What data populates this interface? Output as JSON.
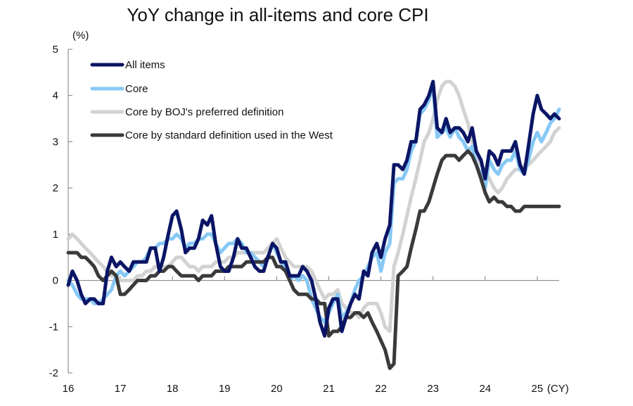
{
  "chart_data": {
    "type": "line",
    "title": "YoY change in all-items and core CPI",
    "ylabel": "(%)",
    "xlabel": "",
    "x_unit": "(CY)",
    "ylim": [
      -2,
      5
    ],
    "xlim": [
      2016.0,
      2025.42
    ],
    "y_ticks": [
      -2,
      -1,
      0,
      1,
      2,
      3,
      4,
      5
    ],
    "x_ticks": [
      {
        "value": 2016,
        "label": "16"
      },
      {
        "value": 2017,
        "label": "17"
      },
      {
        "value": 2018,
        "label": "18"
      },
      {
        "value": 2019,
        "label": "19"
      },
      {
        "value": 2020,
        "label": "20"
      },
      {
        "value": 2021,
        "label": "21"
      },
      {
        "value": 2022,
        "label": "22"
      },
      {
        "value": 2023,
        "label": "23"
      },
      {
        "value": 2024,
        "label": "24"
      },
      {
        "value": 2025,
        "label": "25"
      }
    ],
    "grid": false,
    "legend_position": "top-left",
    "series": [
      {
        "name": "All items",
        "color": "#0b1566",
        "width": 5,
        "x": [
          2016.0,
          2016.08,
          2016.17,
          2016.25,
          2016.33,
          2016.42,
          2016.5,
          2016.58,
          2016.67,
          2016.75,
          2016.83,
          2016.92,
          2017.0,
          2017.08,
          2017.17,
          2017.25,
          2017.33,
          2017.42,
          2017.5,
          2017.58,
          2017.67,
          2017.75,
          2017.83,
          2017.92,
          2018.0,
          2018.08,
          2018.17,
          2018.25,
          2018.33,
          2018.42,
          2018.5,
          2018.58,
          2018.67,
          2018.75,
          2018.83,
          2018.92,
          2019.0,
          2019.08,
          2019.17,
          2019.25,
          2019.33,
          2019.42,
          2019.5,
          2019.58,
          2019.67,
          2019.75,
          2019.83,
          2019.92,
          2020.0,
          2020.08,
          2020.17,
          2020.25,
          2020.33,
          2020.42,
          2020.5,
          2020.58,
          2020.67,
          2020.75,
          2020.83,
          2020.92,
          2021.0,
          2021.08,
          2021.17,
          2021.25,
          2021.33,
          2021.42,
          2021.5,
          2021.58,
          2021.67,
          2021.75,
          2021.83,
          2021.92,
          2022.0,
          2022.08,
          2022.17,
          2022.25,
          2022.33,
          2022.42,
          2022.5,
          2022.58,
          2022.67,
          2022.75,
          2022.83,
          2022.92,
          2023.0,
          2023.08,
          2023.17,
          2023.25,
          2023.33,
          2023.42,
          2023.5,
          2023.58,
          2023.67,
          2023.75,
          2023.83,
          2023.92,
          2024.0,
          2024.08,
          2024.17,
          2024.25,
          2024.33,
          2024.42,
          2024.5,
          2024.58,
          2024.67,
          2024.75,
          2024.83,
          2024.92,
          2025.0,
          2025.08,
          2025.17,
          2025.25,
          2025.33,
          2025.42
        ],
        "values": [
          -0.1,
          0.2,
          0.0,
          -0.3,
          -0.5,
          -0.4,
          -0.4,
          -0.5,
          -0.5,
          0.2,
          0.5,
          0.3,
          0.4,
          0.3,
          0.2,
          0.4,
          0.4,
          0.4,
          0.4,
          0.7,
          0.7,
          0.2,
          0.5,
          1.0,
          1.4,
          1.5,
          1.1,
          0.6,
          0.7,
          0.7,
          0.9,
          1.3,
          1.2,
          1.4,
          0.8,
          0.3,
          0.2,
          0.2,
          0.5,
          0.9,
          0.7,
          0.7,
          0.5,
          0.3,
          0.2,
          0.2,
          0.5,
          0.8,
          0.7,
          0.4,
          0.4,
          0.1,
          0.1,
          0.1,
          0.3,
          0.2,
          0.0,
          -0.4,
          -0.9,
          -1.2,
          -0.6,
          -0.4,
          -0.4,
          -1.1,
          -0.8,
          -0.5,
          -0.3,
          -0.4,
          0.2,
          0.1,
          0.6,
          0.8,
          0.5,
          0.9,
          1.2,
          2.5,
          2.5,
          2.4,
          2.6,
          3.0,
          3.0,
          3.7,
          3.8,
          4.0,
          4.3,
          3.3,
          3.2,
          3.5,
          3.2,
          3.3,
          3.3,
          3.2,
          3.0,
          3.3,
          2.8,
          2.6,
          2.2,
          2.8,
          2.7,
          2.5,
          2.8,
          2.8,
          2.8,
          3.0,
          2.5,
          2.3,
          2.9,
          3.6,
          4.0,
          3.7,
          3.6,
          3.5,
          3.6,
          3.5
        ]
      },
      {
        "name": "Core",
        "color": "#87c8f5",
        "width": 5,
        "x": [
          2016.0,
          2016.08,
          2016.17,
          2016.25,
          2016.33,
          2016.42,
          2016.5,
          2016.58,
          2016.67,
          2016.75,
          2016.83,
          2016.92,
          2017.0,
          2017.08,
          2017.17,
          2017.25,
          2017.33,
          2017.42,
          2017.5,
          2017.58,
          2017.67,
          2017.75,
          2017.83,
          2017.92,
          2018.0,
          2018.08,
          2018.17,
          2018.25,
          2018.33,
          2018.42,
          2018.5,
          2018.58,
          2018.67,
          2018.75,
          2018.83,
          2018.92,
          2019.0,
          2019.08,
          2019.17,
          2019.25,
          2019.33,
          2019.42,
          2019.5,
          2019.58,
          2019.67,
          2019.75,
          2019.83,
          2019.92,
          2020.0,
          2020.08,
          2020.17,
          2020.25,
          2020.33,
          2020.42,
          2020.5,
          2020.58,
          2020.67,
          2020.75,
          2020.83,
          2020.92,
          2021.0,
          2021.08,
          2021.17,
          2021.25,
          2021.33,
          2021.42,
          2021.5,
          2021.58,
          2021.67,
          2021.75,
          2021.83,
          2021.92,
          2022.0,
          2022.08,
          2022.17,
          2022.25,
          2022.33,
          2022.42,
          2022.5,
          2022.58,
          2022.67,
          2022.75,
          2022.83,
          2022.92,
          2023.0,
          2023.08,
          2023.17,
          2023.25,
          2023.33,
          2023.42,
          2023.5,
          2023.58,
          2023.67,
          2023.75,
          2023.83,
          2023.92,
          2024.0,
          2024.08,
          2024.17,
          2024.25,
          2024.33,
          2024.42,
          2024.5,
          2024.58,
          2024.67,
          2024.75,
          2024.83,
          2024.92,
          2025.0,
          2025.08,
          2025.17,
          2025.25,
          2025.33,
          2025.42
        ],
        "values": [
          0.0,
          -0.1,
          -0.3,
          -0.4,
          -0.4,
          -0.4,
          -0.5,
          -0.5,
          -0.4,
          -0.3,
          -0.2,
          0.1,
          0.2,
          0.1,
          0.2,
          0.3,
          0.4,
          0.4,
          0.5,
          0.7,
          0.7,
          0.8,
          0.8,
          0.9,
          0.9,
          1.0,
          0.9,
          0.7,
          0.8,
          0.8,
          0.9,
          0.9,
          1.0,
          1.0,
          0.8,
          0.6,
          0.7,
          0.8,
          0.8,
          0.9,
          0.8,
          0.6,
          0.6,
          0.5,
          0.4,
          0.3,
          0.5,
          0.8,
          0.6,
          0.4,
          0.3,
          0.0,
          0.1,
          0.0,
          0.1,
          0.0,
          -0.4,
          -0.6,
          -0.8,
          -0.9,
          -0.7,
          -0.5,
          -0.3,
          -0.8,
          -0.7,
          -0.5,
          -0.2,
          0.0,
          0.1,
          0.3,
          0.5,
          0.6,
          0.2,
          0.6,
          0.8,
          2.1,
          2.2,
          2.2,
          2.4,
          2.8,
          3.0,
          3.6,
          3.7,
          3.9,
          4.2,
          3.1,
          3.2,
          3.3,
          3.1,
          3.3,
          3.1,
          3.0,
          2.8,
          2.9,
          2.5,
          2.3,
          2.0,
          2.6,
          2.4,
          2.3,
          2.5,
          2.6,
          2.6,
          2.8,
          2.4,
          2.3,
          2.6,
          3.0,
          3.2,
          3.0,
          3.2,
          3.4,
          3.5,
          3.7
        ]
      },
      {
        "name": "Core by BOJ's preferred definition",
        "color": "#d2d2d2",
        "width": 5,
        "x": [
          2016.0,
          2016.08,
          2016.17,
          2016.25,
          2016.33,
          2016.42,
          2016.5,
          2016.58,
          2016.67,
          2016.75,
          2016.83,
          2016.92,
          2017.0,
          2017.08,
          2017.17,
          2017.25,
          2017.33,
          2017.42,
          2017.5,
          2017.58,
          2017.67,
          2017.75,
          2017.83,
          2017.92,
          2018.0,
          2018.08,
          2018.17,
          2018.25,
          2018.33,
          2018.42,
          2018.5,
          2018.58,
          2018.67,
          2018.75,
          2018.83,
          2018.92,
          2019.0,
          2019.08,
          2019.17,
          2019.25,
          2019.33,
          2019.42,
          2019.5,
          2019.58,
          2019.67,
          2019.75,
          2019.83,
          2019.92,
          2020.0,
          2020.08,
          2020.17,
          2020.25,
          2020.33,
          2020.42,
          2020.5,
          2020.58,
          2020.67,
          2020.75,
          2020.83,
          2020.92,
          2021.0,
          2021.08,
          2021.17,
          2021.25,
          2021.33,
          2021.42,
          2021.5,
          2021.58,
          2021.67,
          2021.75,
          2021.83,
          2021.92,
          2022.0,
          2022.08,
          2022.17,
          2022.25,
          2022.33,
          2022.42,
          2022.5,
          2022.58,
          2022.67,
          2022.75,
          2022.83,
          2022.92,
          2023.0,
          2023.08,
          2023.17,
          2023.25,
          2023.33,
          2023.42,
          2023.5,
          2023.58,
          2023.67,
          2023.75,
          2023.83,
          2023.92,
          2024.0,
          2024.08,
          2024.17,
          2024.25,
          2024.33,
          2024.42,
          2024.5,
          2024.58,
          2024.67,
          2024.75,
          2024.83,
          2024.92,
          2025.0,
          2025.08,
          2025.17,
          2025.25,
          2025.33,
          2025.42
        ],
        "values": [
          0.9,
          1.0,
          0.9,
          0.8,
          0.7,
          0.6,
          0.5,
          0.4,
          0.3,
          0.2,
          0.1,
          0.1,
          0.0,
          0.0,
          0.0,
          0.0,
          0.1,
          0.1,
          0.2,
          0.2,
          0.3,
          0.3,
          0.3,
          0.3,
          0.4,
          0.5,
          0.5,
          0.4,
          0.3,
          0.3,
          0.2,
          0.3,
          0.3,
          0.3,
          0.4,
          0.4,
          0.4,
          0.5,
          0.5,
          0.6,
          0.6,
          0.6,
          0.6,
          0.6,
          0.6,
          0.6,
          0.7,
          0.8,
          0.9,
          0.7,
          0.5,
          0.4,
          0.3,
          0.3,
          0.3,
          0.3,
          0.2,
          0.0,
          -0.2,
          -0.4,
          -0.3,
          -0.3,
          -0.2,
          -0.5,
          -0.6,
          -0.7,
          -0.7,
          -0.8,
          -0.6,
          -0.5,
          -0.5,
          -0.5,
          -0.7,
          -1.0,
          -1.1,
          0.3,
          0.6,
          1.0,
          1.4,
          1.8,
          2.2,
          2.6,
          3.0,
          3.2,
          3.5,
          3.9,
          4.2,
          4.3,
          4.3,
          4.2,
          4.0,
          3.7,
          3.4,
          3.0,
          2.7,
          2.5,
          2.4,
          2.2,
          2.0,
          1.9,
          2.0,
          2.2,
          2.3,
          2.4,
          2.4,
          2.5,
          2.5,
          2.6,
          2.7,
          2.8,
          2.9,
          3.0,
          3.2,
          3.3
        ]
      },
      {
        "name": "Core by standard definition used in the West",
        "color": "#3a3a3a",
        "width": 5,
        "x": [
          2016.0,
          2016.08,
          2016.17,
          2016.25,
          2016.33,
          2016.42,
          2016.5,
          2016.58,
          2016.67,
          2016.75,
          2016.83,
          2016.92,
          2017.0,
          2017.08,
          2017.17,
          2017.25,
          2017.33,
          2017.42,
          2017.5,
          2017.58,
          2017.67,
          2017.75,
          2017.83,
          2017.92,
          2018.0,
          2018.08,
          2018.17,
          2018.25,
          2018.33,
          2018.42,
          2018.5,
          2018.58,
          2018.67,
          2018.75,
          2018.83,
          2018.92,
          2019.0,
          2019.08,
          2019.17,
          2019.25,
          2019.33,
          2019.42,
          2019.5,
          2019.58,
          2019.67,
          2019.75,
          2019.83,
          2019.92,
          2020.0,
          2020.08,
          2020.17,
          2020.25,
          2020.33,
          2020.42,
          2020.5,
          2020.58,
          2020.67,
          2020.75,
          2020.83,
          2020.92,
          2021.0,
          2021.08,
          2021.17,
          2021.25,
          2021.33,
          2021.42,
          2021.5,
          2021.58,
          2021.67,
          2021.75,
          2021.83,
          2021.92,
          2022.0,
          2022.08,
          2022.17,
          2022.25,
          2022.33,
          2022.42,
          2022.5,
          2022.58,
          2022.67,
          2022.75,
          2022.83,
          2022.92,
          2023.0,
          2023.08,
          2023.17,
          2023.25,
          2023.33,
          2023.42,
          2023.5,
          2023.58,
          2023.67,
          2023.75,
          2023.83,
          2023.92,
          2024.0,
          2024.08,
          2024.17,
          2024.25,
          2024.33,
          2024.42,
          2024.5,
          2024.58,
          2024.67,
          2024.75,
          2024.83,
          2024.92,
          2025.0,
          2025.08,
          2025.17,
          2025.25,
          2025.33,
          2025.42
        ],
        "values": [
          0.6,
          0.6,
          0.6,
          0.5,
          0.5,
          0.4,
          0.3,
          0.1,
          0.0,
          0.1,
          0.2,
          0.1,
          -0.3,
          -0.3,
          -0.2,
          -0.1,
          0.0,
          0.0,
          0.0,
          0.1,
          0.1,
          0.2,
          0.2,
          0.3,
          0.3,
          0.2,
          0.1,
          0.1,
          0.1,
          0.1,
          0.0,
          0.1,
          0.1,
          0.1,
          0.2,
          0.2,
          0.2,
          0.3,
          0.3,
          0.3,
          0.3,
          0.4,
          0.4,
          0.4,
          0.4,
          0.4,
          0.5,
          0.5,
          0.3,
          0.3,
          0.2,
          0.0,
          -0.2,
          -0.3,
          -0.3,
          -0.3,
          -0.4,
          -0.4,
          -0.5,
          -0.5,
          -1.2,
          -1.1,
          -1.1,
          -1.0,
          -0.8,
          -0.8,
          -0.7,
          -0.7,
          -0.8,
          -0.7,
          -0.9,
          -1.1,
          -1.3,
          -1.5,
          -1.9,
          -1.8,
          0.1,
          0.2,
          0.3,
          0.7,
          1.1,
          1.5,
          1.5,
          1.7,
          2.0,
          2.3,
          2.6,
          2.7,
          2.7,
          2.7,
          2.6,
          2.7,
          2.8,
          2.7,
          2.5,
          2.2,
          1.9,
          1.7,
          1.8,
          1.7,
          1.7,
          1.6,
          1.6,
          1.5,
          1.5,
          1.6,
          1.6,
          1.6,
          1.6,
          1.6,
          1.6,
          1.6,
          1.6,
          1.6
        ]
      }
    ]
  }
}
